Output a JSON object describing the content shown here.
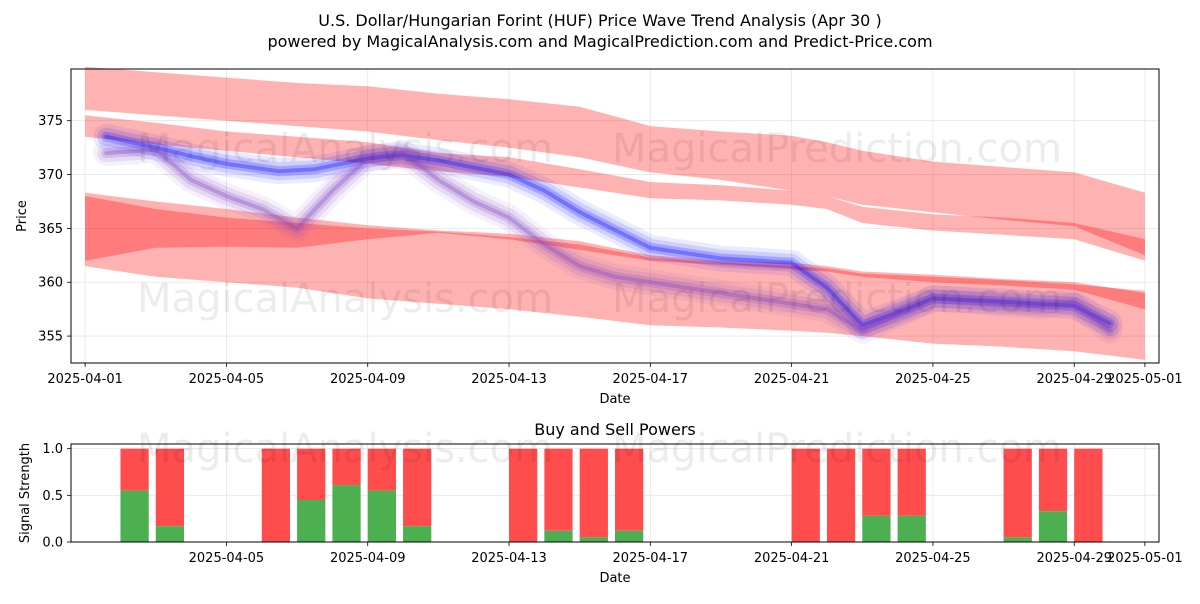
{
  "chart_data": [
    {
      "type": "area",
      "title": "U.S. Dollar/Hungarian Forint (HUF) Price Wave Trend Analysis (Apr 30 )",
      "subtitle": "powered by MagicalAnalysis.com and MagicalPrediction.com and Predict-Price.com",
      "xlabel": "Date",
      "ylabel": "Price",
      "xlim": [
        -0.4,
        30.4
      ],
      "ylim": [
        352.5,
        379.8
      ],
      "x_tick_labels": [
        "2025-04-01",
        "2025-04-05",
        "2025-04-09",
        "2025-04-13",
        "2025-04-17",
        "2025-04-21",
        "2025-04-25",
        "2025-04-29",
        "2025-05-01"
      ],
      "x_tick_days": [
        0,
        4,
        8,
        12,
        16,
        20,
        24,
        28,
        30
      ],
      "y_ticks": [
        355,
        360,
        365,
        370,
        375
      ],
      "grid": true,
      "watermarks": [
        "MagicalAnalysis.com",
        "MagicalPrediction.com"
      ],
      "colors": {
        "red_band": "#ff0000",
        "blue_band": "#0000ff",
        "buy": "#4caf50",
        "sell": "#ff4d4d"
      },
      "series": [
        {
          "name": "upper wave band",
          "color": "#ff0000",
          "x": [
            0,
            2,
            4,
            6,
            8,
            10,
            12,
            14,
            16,
            18,
            20,
            21,
            22,
            24,
            26,
            28,
            30
          ],
          "upper": [
            380,
            379.5,
            379,
            378.5,
            378.2,
            377.5,
            377.0,
            376.3,
            374.5,
            374.0,
            373.6,
            373.0,
            372.2,
            371.2,
            370.7,
            370.2,
            368.3
          ],
          "lower": [
            376,
            375.5,
            375.0,
            374.5,
            374.0,
            373.2,
            372.5,
            371.6,
            370.2,
            369.5,
            368.5,
            368.0,
            367.2,
            366.5,
            365.8,
            365.2,
            362.5
          ],
          "core_upper": [
            375.5,
            374.8,
            374.0,
            373.5,
            373.0,
            372.0,
            371.6,
            370.5,
            369.3,
            369.0,
            368.5,
            368.0,
            367.0,
            366.3,
            366.0,
            365.5,
            364.0
          ],
          "core_lower": [
            373.5,
            372.8,
            372.2,
            371.6,
            371.0,
            370.3,
            369.8,
            368.8,
            367.8,
            367.6,
            367.2,
            366.8,
            365.5,
            364.8,
            364.4,
            364.0,
            362.0
          ]
        },
        {
          "name": "lower wave band",
          "color": "#ff0000",
          "x": [
            0,
            2,
            4,
            6,
            8,
            10,
            12,
            14,
            16,
            18,
            20,
            21,
            22,
            24,
            26,
            28,
            30
          ],
          "upper": [
            368.3,
            367.5,
            366.8,
            366.0,
            365.3,
            364.8,
            364.5,
            363.8,
            362.5,
            362.0,
            361.8,
            361.5,
            361.0,
            360.7,
            360.3,
            360.0,
            359.0
          ],
          "lower": [
            361.5,
            360.5,
            360.0,
            359.5,
            358.5,
            358.0,
            357.5,
            356.8,
            356.0,
            355.8,
            355.5,
            355.3,
            355.0,
            354.3,
            354.0,
            353.6,
            352.8
          ],
          "core_upper": [
            368.0,
            366.8,
            366.0,
            365.5,
            365.0,
            364.7,
            364.2,
            363.5,
            362.3,
            361.8,
            361.5,
            361.3,
            360.8,
            360.5,
            360.2,
            359.8,
            359.2
          ],
          "core_lower": [
            362.0,
            363.2,
            363.3,
            363.2,
            364.0,
            364.6,
            364.0,
            363.0,
            362.0,
            361.6,
            361.2,
            361.0,
            360.5,
            360.0,
            359.7,
            359.3,
            357.5
          ]
        },
        {
          "name": "blue wave",
          "color": "#0000ff",
          "x": [
            0.6,
            2,
            3,
            4,
            5.5,
            6.5,
            8,
            9,
            10,
            12,
            13,
            14,
            16,
            18,
            20,
            21,
            22,
            23,
            24,
            26,
            27,
            28,
            29
          ],
          "values": [
            373.5,
            372.5,
            371.7,
            371.0,
            370.3,
            370.5,
            371.5,
            371.8,
            371.3,
            370.0,
            368.5,
            366.5,
            363.2,
            362.2,
            361.8,
            359.5,
            356.0,
            357.2,
            358.5,
            358.2,
            358.0,
            357.8,
            356.2
          ]
        },
        {
          "name": "purple wave",
          "color": "#7b3fc0",
          "x": [
            0.6,
            2,
            3,
            4,
            5,
            6,
            7,
            8,
            9,
            10,
            11,
            12,
            13,
            14,
            15,
            16,
            17,
            18,
            19,
            20,
            21,
            22,
            23,
            24,
            25,
            26,
            27,
            28,
            29
          ],
          "values": [
            372.0,
            372.3,
            369.5,
            368.0,
            366.8,
            365.0,
            368.5,
            371.5,
            372.0,
            369.5,
            367.5,
            366.0,
            363.5,
            361.5,
            360.5,
            360.0,
            359.5,
            359.0,
            358.5,
            358.0,
            357.5,
            355.5,
            357.0,
            358.5,
            358.3,
            358.0,
            357.8,
            358.2,
            355.5
          ]
        }
      ]
    },
    {
      "type": "bar",
      "title": "Buy and Sell Powers",
      "xlabel": "Date",
      "ylabel": "Signal Strength",
      "ylim": [
        0,
        1.05
      ],
      "y_tick_labels": [
        "0.0",
        "0.5",
        "1.0"
      ],
      "x_tick_labels": [
        "2025-04-05",
        "2025-04-09",
        "2025-04-13",
        "2025-04-17",
        "2025-04-21",
        "2025-04-25",
        "2025-04-29",
        "2025-05-01"
      ],
      "bars": [
        {
          "day": 1.4,
          "buy": 0.55
        },
        {
          "day": 2.4,
          "buy": 0.17
        },
        {
          "day": 5.4,
          "buy": 0.0
        },
        {
          "day": 6.4,
          "buy": 0.45
        },
        {
          "day": 7.4,
          "buy": 0.61
        },
        {
          "day": 8.4,
          "buy": 0.55
        },
        {
          "day": 9.4,
          "buy": 0.17
        },
        {
          "day": 12.4,
          "buy": 0.0
        },
        {
          "day": 13.4,
          "buy": 0.12
        },
        {
          "day": 14.4,
          "buy": 0.05
        },
        {
          "day": 15.4,
          "buy": 0.12
        },
        {
          "day": 20.4,
          "buy": 0.0
        },
        {
          "day": 21.4,
          "buy": 0.0
        },
        {
          "day": 22.4,
          "buy": 0.28
        },
        {
          "day": 23.4,
          "buy": 0.28
        },
        {
          "day": 26.4,
          "buy": 0.05
        },
        {
          "day": 27.4,
          "buy": 0.33
        },
        {
          "day": 28.4,
          "buy": 0.0
        }
      ]
    }
  ]
}
